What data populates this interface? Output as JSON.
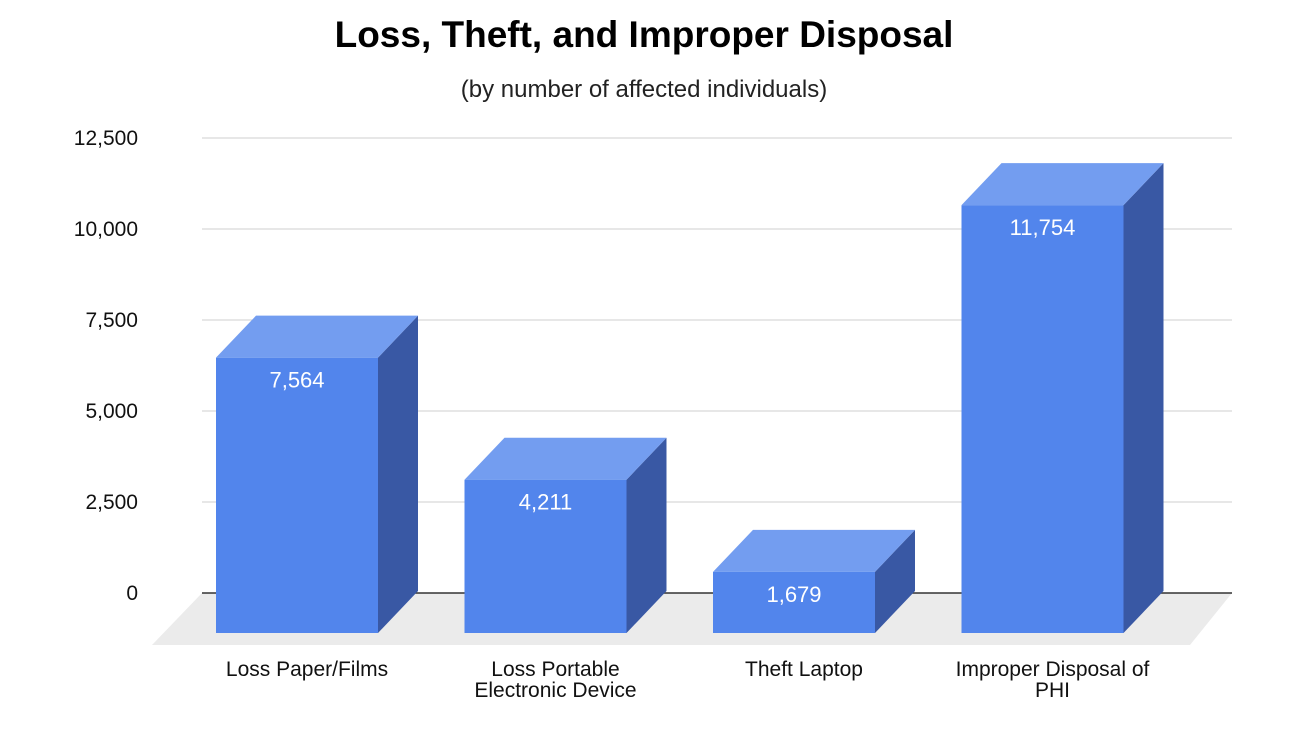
{
  "chart_data": {
    "type": "bar",
    "title": "Loss, Theft, and Improper Disposal",
    "subtitle": "(by number of affected individuals)",
    "xlabel": "",
    "ylabel": "",
    "categories": [
      [
        "Loss Paper/Films"
      ],
      [
        "Loss Portable",
        "Electronic Device"
      ],
      [
        "Theft Laptop"
      ],
      [
        "Improper Disposal of",
        "PHI"
      ]
    ],
    "values": [
      7564,
      4211,
      1679,
      11754
    ],
    "data_labels": [
      "7,564",
      "4,211",
      "1,679",
      "11,754"
    ],
    "ylim": [
      0,
      12500
    ],
    "yticks": [
      0,
      2500,
      5000,
      7500,
      10000,
      12500
    ],
    "ytick_labels": [
      "0",
      "2,500",
      "5,000",
      "7,500",
      "10,000",
      "12,500"
    ],
    "grid": true,
    "style": "3d",
    "colors": {
      "front": "#5285EC",
      "top": "#739DF0",
      "side": "#3958A4",
      "floor": "#EBEBEB"
    }
  }
}
